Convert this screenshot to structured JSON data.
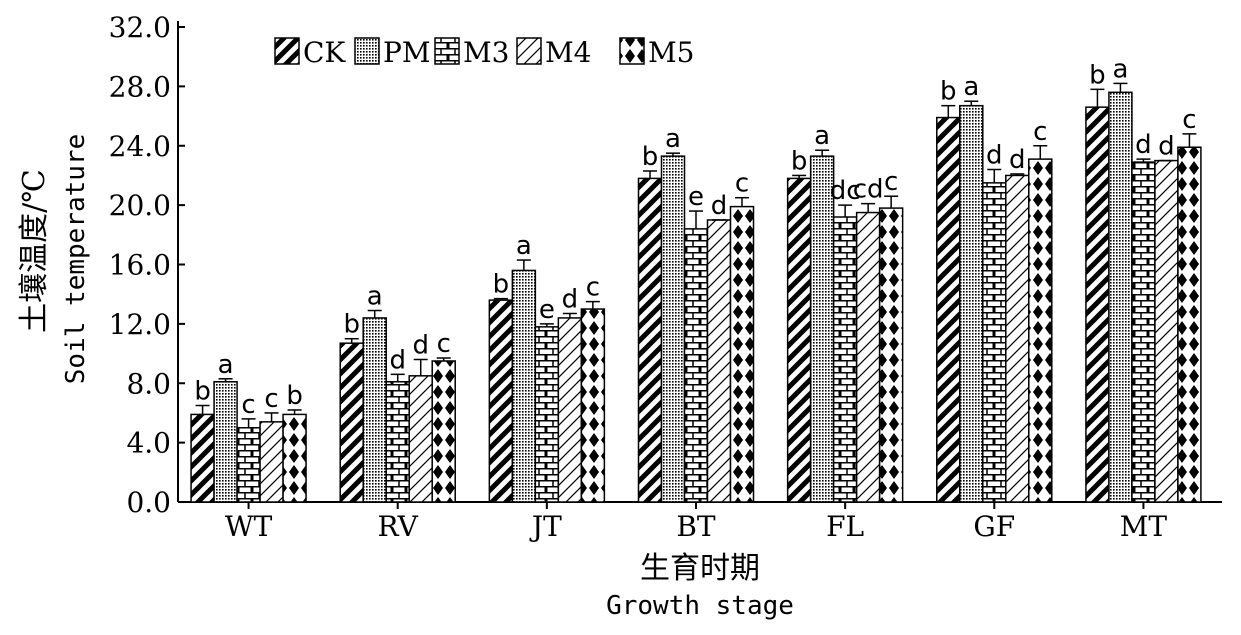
{
  "chart_data": {
    "type": "bar",
    "ylabel_cn": "土壤温度/℃",
    "ylabel_en": "Soil temperature",
    "xlabel_cn": "生育时期",
    "xlabel_en": "Growth stage",
    "ylim": [
      0,
      32
    ],
    "yticks": [
      "0.0",
      "4.0",
      "8.0",
      "12.0",
      "16.0",
      "20.0",
      "24.0",
      "28.0",
      "32.0"
    ],
    "categories": [
      "WT",
      "RV",
      "JT",
      "BT",
      "FL",
      "GF",
      "MT"
    ],
    "legend_position": "top-left",
    "grid": false,
    "series": [
      {
        "name": "CK",
        "pattern": "hatch-bold",
        "values": [
          5.9,
          10.7,
          13.6,
          21.8,
          21.8,
          25.9,
          26.6
        ],
        "errors": [
          0.6,
          0.3,
          0.1,
          0.5,
          0.2,
          0.8,
          1.2
        ],
        "letters": [
          "b",
          "b",
          "b",
          "b",
          "b",
          "b",
          "b"
        ]
      },
      {
        "name": "PM",
        "pattern": "dots",
        "values": [
          8.1,
          12.4,
          15.6,
          23.3,
          23.3,
          26.7,
          27.6
        ],
        "errors": [
          0.2,
          0.5,
          0.7,
          0.2,
          0.4,
          0.3,
          0.6
        ],
        "letters": [
          "a",
          "a",
          "a",
          "a",
          "a",
          "a",
          "a"
        ]
      },
      {
        "name": "M3",
        "pattern": "bricks",
        "values": [
          5.0,
          8.1,
          11.8,
          18.4,
          19.2,
          21.5,
          22.9
        ],
        "errors": [
          0.6,
          0.5,
          0.2,
          1.2,
          0.8,
          0.9,
          0.2
        ],
        "letters": [
          "c",
          "d",
          "e",
          "e",
          "dc",
          "d",
          "d"
        ]
      },
      {
        "name": "M4",
        "pattern": "hatch-light",
        "values": [
          5.4,
          8.5,
          12.4,
          19.0,
          19.5,
          22.0,
          23.0
        ],
        "errors": [
          0.6,
          1.1,
          0.3,
          0.0,
          0.6,
          0.1,
          0.0
        ],
        "letters": [
          "c",
          "d",
          "d",
          "d",
          "cd",
          "d",
          "d"
        ]
      },
      {
        "name": "M5",
        "pattern": "diamonds",
        "values": [
          5.9,
          9.5,
          13.0,
          19.9,
          19.8,
          23.1,
          23.9
        ],
        "errors": [
          0.3,
          0.2,
          0.5,
          0.6,
          0.8,
          0.9,
          0.9
        ],
        "letters": [
          "b",
          "c",
          "c",
          "c",
          "c",
          "c",
          "c"
        ]
      }
    ]
  }
}
